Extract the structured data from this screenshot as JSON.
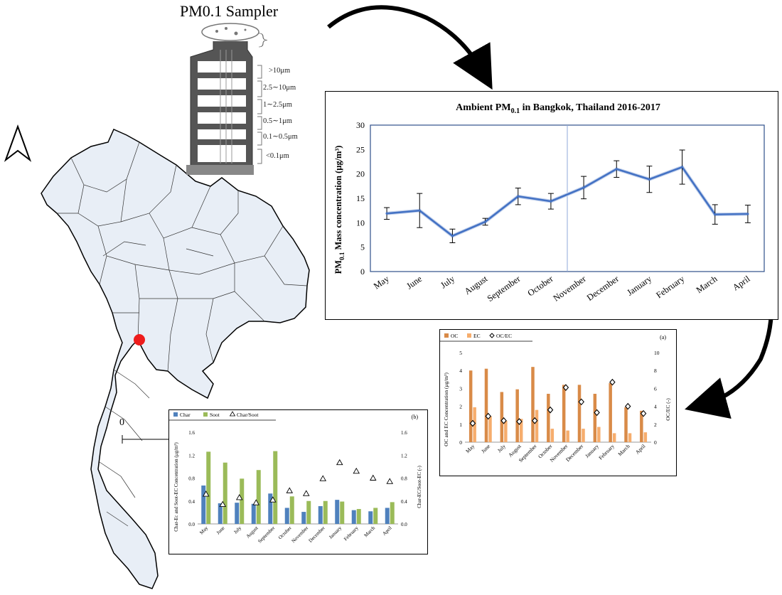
{
  "sampler": {
    "title": "PM0.1 Sampler",
    "stages": [
      ">10μm",
      "2.5∼10μm",
      "1∼2.5μm",
      "0.5∼1μm",
      "0.1∼0.5μm",
      "<0.1μm"
    ]
  },
  "map": {
    "scale_label": "0",
    "marker_color": "#ee1c1c",
    "fill_color": "#e8eef6"
  },
  "chart_data": [
    {
      "type": "line",
      "title": "Ambient PM",
      "title_sub": "0.1",
      "title_rest": " in Bangkok, Thailand 2016-2017",
      "ylabel": "PM",
      "ylabel_sub": "0.1",
      "ylabel_rest": " Mass concentration (μg/m³)",
      "ylim": [
        0,
        30
      ],
      "yticks": [
        "0",
        "5",
        "10",
        "15",
        "20",
        "25",
        "30"
      ],
      "categories": [
        "May",
        "June",
        "July",
        "August",
        "September",
        "October",
        "November",
        "December",
        "January",
        "February",
        "March",
        "April"
      ],
      "series": [
        {
          "values": [
            11.9,
            12.5,
            7.3,
            10.2,
            15.4,
            14.4,
            17.2,
            21.0,
            18.9,
            21.4,
            11.7,
            11.8
          ],
          "error": [
            1.2,
            3.5,
            1.4,
            0.7,
            1.7,
            1.6,
            2.3,
            1.7,
            2.7,
            3.5,
            2.0,
            1.8
          ],
          "color": "#4472c4"
        }
      ],
      "divider_between": [
        "October",
        "November"
      ]
    },
    {
      "type": "bar",
      "panel_label": "(a)",
      "ylabel": "OC and EC Concentration (μg/m³)",
      "y2label": "OC/EC (-)",
      "ylim": [
        0,
        5
      ],
      "y2lim": [
        0,
        10
      ],
      "yticks": [
        "0",
        "1",
        "2",
        "3",
        "4",
        "5"
      ],
      "y2ticks": [
        "0",
        "2",
        "4",
        "6",
        "8",
        "10"
      ],
      "categories": [
        "May",
        "June",
        "July",
        "August",
        "September",
        "October",
        "November",
        "December",
        "January",
        "February",
        "March",
        "April"
      ],
      "series": [
        {
          "name": "OC",
          "color": "#d98b48",
          "values": [
            4.0,
            4.1,
            2.8,
            2.95,
            4.2,
            2.7,
            3.2,
            3.2,
            2.7,
            3.3,
            1.95,
            1.75
          ]
        },
        {
          "name": "EC",
          "color": "#f6ad6d",
          "values": [
            1.95,
            1.45,
            1.2,
            1.3,
            1.8,
            0.75,
            0.65,
            0.75,
            0.85,
            0.5,
            0.5,
            0.55
          ]
        },
        {
          "name": "OC/EC",
          "marker": "diamond",
          "axis": "y2",
          "values": [
            2.1,
            2.9,
            2.4,
            2.3,
            2.4,
            3.6,
            6.1,
            4.5,
            3.3,
            6.7,
            4.0,
            3.2
          ]
        }
      ]
    },
    {
      "type": "bar",
      "panel_label": "(b)",
      "ylabel": "Char-Ec and Soot-EC Concentration (μg/m³)",
      "y2label": "Char-EC/Soot-EC (-)",
      "ylim": [
        0,
        1.6
      ],
      "y2lim": [
        0,
        1.6
      ],
      "yticks": [
        "0.0",
        "0.4",
        "0.8",
        "1.2",
        "1.6"
      ],
      "y2ticks": [
        "0.0",
        "0.4",
        "0.8",
        "1.2",
        "1.6"
      ],
      "categories": [
        "May",
        "June",
        "July",
        "August",
        "September",
        "October",
        "November",
        "December",
        "January",
        "February",
        "March",
        "April"
      ],
      "series": [
        {
          "name": "Char",
          "color": "#4f81bd",
          "values": [
            0.67,
            0.36,
            0.37,
            0.35,
            0.53,
            0.28,
            0.21,
            0.31,
            0.42,
            0.24,
            0.22,
            0.28
          ]
        },
        {
          "name": "Soot",
          "color": "#9bbb59",
          "values": [
            1.26,
            1.07,
            0.79,
            0.94,
            1.27,
            0.48,
            0.4,
            0.4,
            0.39,
            0.26,
            0.28,
            0.38
          ]
        },
        {
          "name": "Char/Soot",
          "marker": "triangle",
          "axis": "y2",
          "values": [
            0.52,
            0.34,
            0.46,
            0.37,
            0.42,
            0.58,
            0.53,
            0.79,
            1.07,
            0.92,
            0.8,
            0.74
          ]
        }
      ]
    }
  ]
}
